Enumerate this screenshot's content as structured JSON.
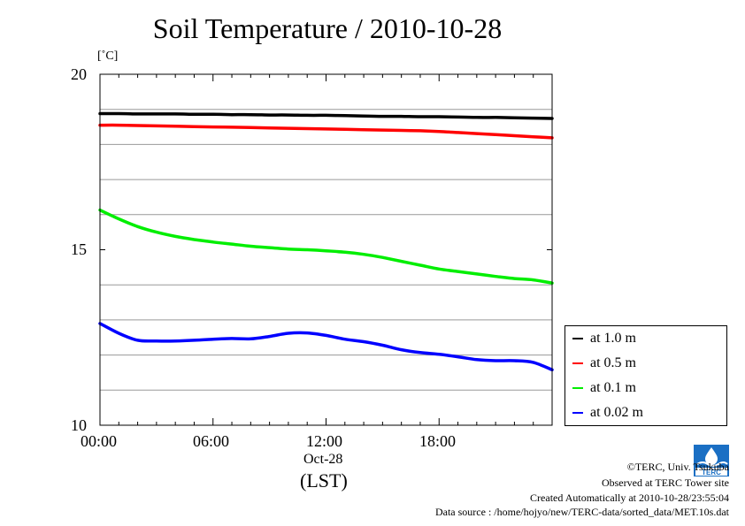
{
  "page": {
    "title": "Soil Temperature / 2010-10-28",
    "footer": {
      "copyright": "©TERC, Univ. Tsukuba",
      "observed": "Observed at TERC Tower site",
      "created": "Created Automatically at 2010-10-28/23:55:04",
      "source": "Data source : /home/hojyo/new/TERC-data/sorted_data/MET.10s.dat"
    },
    "logo": {
      "text": "TERC"
    }
  },
  "chart_data": {
    "type": "line",
    "title": "Soil Temperature / 2010-10-28",
    "ylabel": "[˚C]",
    "xlabel": "(LST)",
    "x_date_label": "Oct-28",
    "xlim": [
      0,
      24
    ],
    "ylim": [
      10,
      20
    ],
    "x_ticks": [
      0,
      6,
      12,
      18
    ],
    "x_tick_labels": [
      "00:00",
      "06:00",
      "12:00",
      "18:00"
    ],
    "y_tick_labels": [
      "10",
      "15",
      "20"
    ],
    "y_ticks": [
      10,
      15,
      20
    ],
    "gridlines_y": [
      11,
      12,
      13,
      14,
      16,
      17,
      18,
      19
    ],
    "grid": true,
    "legend_position": "right",
    "x": [
      0,
      1,
      2,
      3,
      4,
      5,
      6,
      7,
      8,
      9,
      10,
      11,
      12,
      13,
      14,
      15,
      16,
      17,
      18,
      19,
      20,
      21,
      22,
      23,
      24
    ],
    "series": [
      {
        "name": "at 1.0 m",
        "color": "#000000",
        "values": [
          18.88,
          18.88,
          18.87,
          18.87,
          18.87,
          18.86,
          18.86,
          18.85,
          18.85,
          18.84,
          18.84,
          18.83,
          18.83,
          18.82,
          18.81,
          18.8,
          18.8,
          18.79,
          18.79,
          18.78,
          18.77,
          18.77,
          18.76,
          18.75,
          18.74
        ]
      },
      {
        "name": "at 0.5 m",
        "color": "#ff0000",
        "values": [
          18.55,
          18.55,
          18.54,
          18.53,
          18.52,
          18.51,
          18.5,
          18.49,
          18.48,
          18.47,
          18.46,
          18.45,
          18.44,
          18.43,
          18.42,
          18.41,
          18.4,
          18.39,
          18.37,
          18.34,
          18.31,
          18.28,
          18.25,
          18.22,
          18.19
        ]
      },
      {
        "name": "at 0.1 m",
        "color": "#00ee00",
        "values": [
          16.13,
          15.88,
          15.66,
          15.5,
          15.38,
          15.29,
          15.22,
          15.16,
          15.1,
          15.06,
          15.02,
          15.0,
          14.97,
          14.93,
          14.87,
          14.78,
          14.67,
          14.56,
          14.45,
          14.38,
          14.31,
          14.24,
          14.18,
          14.14,
          14.05
        ]
      },
      {
        "name": "at 0.02 m",
        "color": "#0000ff",
        "values": [
          12.9,
          12.62,
          12.42,
          12.4,
          12.4,
          12.42,
          12.45,
          12.47,
          12.46,
          12.53,
          12.62,
          12.63,
          12.56,
          12.45,
          12.38,
          12.28,
          12.15,
          12.07,
          12.02,
          11.95,
          11.87,
          11.84,
          11.84,
          11.79,
          11.58
        ]
      }
    ]
  }
}
